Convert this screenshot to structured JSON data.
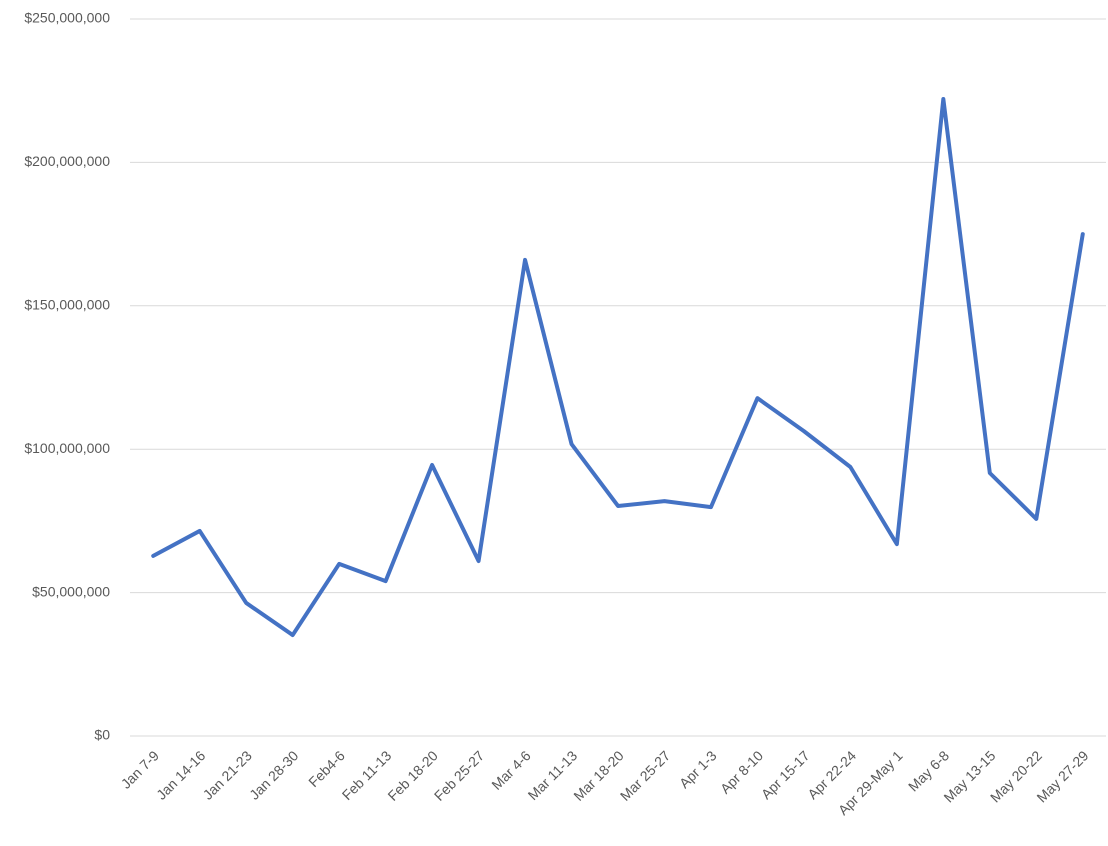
{
  "chart_data": {
    "type": "line",
    "categories": [
      "Jan 7-9",
      "Jan 14-16",
      "Jan 21-23",
      "Jan 28-30",
      "Feb4-6",
      "Feb 11-13",
      "Feb 18-20",
      "Feb 25-27",
      "Mar 4-6",
      "Mar 11-13",
      "Mar 18-20",
      "Mar 25-27",
      "Apr 1-3",
      "Apr 8-10",
      "Apr 15-17",
      "Apr 22-24",
      "Apr 29-May 1",
      "May 6-8",
      "May 13-15",
      "May 20-22",
      "May 27-29"
    ],
    "series": [
      {
        "color": "#4472c4",
        "values": [
          62800000,
          71500000,
          46400000,
          35200000,
          60000000,
          54000000,
          94500000,
          61000000,
          166000000,
          101800000,
          80200000,
          81900000,
          79800000,
          117800000,
          106300000,
          93800000,
          66900000,
          222100000,
          91700000,
          75700000,
          175000000
        ]
      }
    ],
    "ylim": [
      0,
      250000000
    ],
    "yticks": [
      {
        "value": 0,
        "label": "$0"
      },
      {
        "value": 50000000,
        "label": "$50,000,000"
      },
      {
        "value": 100000000,
        "label": "$100,000,000"
      },
      {
        "value": 150000000,
        "label": "$150,000,000"
      },
      {
        "value": 200000000,
        "label": "$200,000,000"
      },
      {
        "value": 250000000,
        "label": "$250,000,000"
      }
    ],
    "grid": true
  }
}
